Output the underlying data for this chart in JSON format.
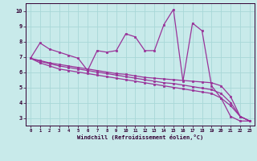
{
  "xlabel": "Windchill (Refroidissement éolien,°C)",
  "background_color": "#c8eaea",
  "grid_color": "#a8d8d8",
  "line_color": "#993399",
  "xlim": [
    -0.5,
    23.5
  ],
  "ylim": [
    2.5,
    10.5
  ],
  "yticks": [
    3,
    4,
    5,
    6,
    7,
    8,
    9,
    10
  ],
  "xticks": [
    0,
    1,
    2,
    3,
    4,
    5,
    6,
    7,
    8,
    9,
    10,
    11,
    12,
    13,
    14,
    15,
    16,
    17,
    18,
    19,
    20,
    21,
    22,
    23
  ],
  "series": [
    [
      6.9,
      7.9,
      7.5,
      7.3,
      7.1,
      6.9,
      6.1,
      7.4,
      7.3,
      7.4,
      8.5,
      8.3,
      7.4,
      7.4,
      9.1,
      10.1,
      5.4,
      9.2,
      8.7,
      5.1,
      4.3,
      3.1,
      2.8,
      2.8
    ],
    [
      6.9,
      6.75,
      6.6,
      6.5,
      6.4,
      6.3,
      6.2,
      6.1,
      6.0,
      5.9,
      5.85,
      5.75,
      5.65,
      5.6,
      5.55,
      5.5,
      5.45,
      5.4,
      5.35,
      5.3,
      5.1,
      4.4,
      3.1,
      2.8
    ],
    [
      6.9,
      6.7,
      6.55,
      6.4,
      6.3,
      6.2,
      6.1,
      6.0,
      5.9,
      5.8,
      5.7,
      5.6,
      5.5,
      5.4,
      5.3,
      5.25,
      5.15,
      5.05,
      4.95,
      4.85,
      4.6,
      4.0,
      3.1,
      2.8
    ],
    [
      6.9,
      6.6,
      6.4,
      6.2,
      6.1,
      6.0,
      5.9,
      5.8,
      5.7,
      5.6,
      5.5,
      5.4,
      5.3,
      5.2,
      5.1,
      5.0,
      4.9,
      4.8,
      4.7,
      4.6,
      4.3,
      3.8,
      3.1,
      2.8
    ]
  ],
  "marker_series": 0
}
